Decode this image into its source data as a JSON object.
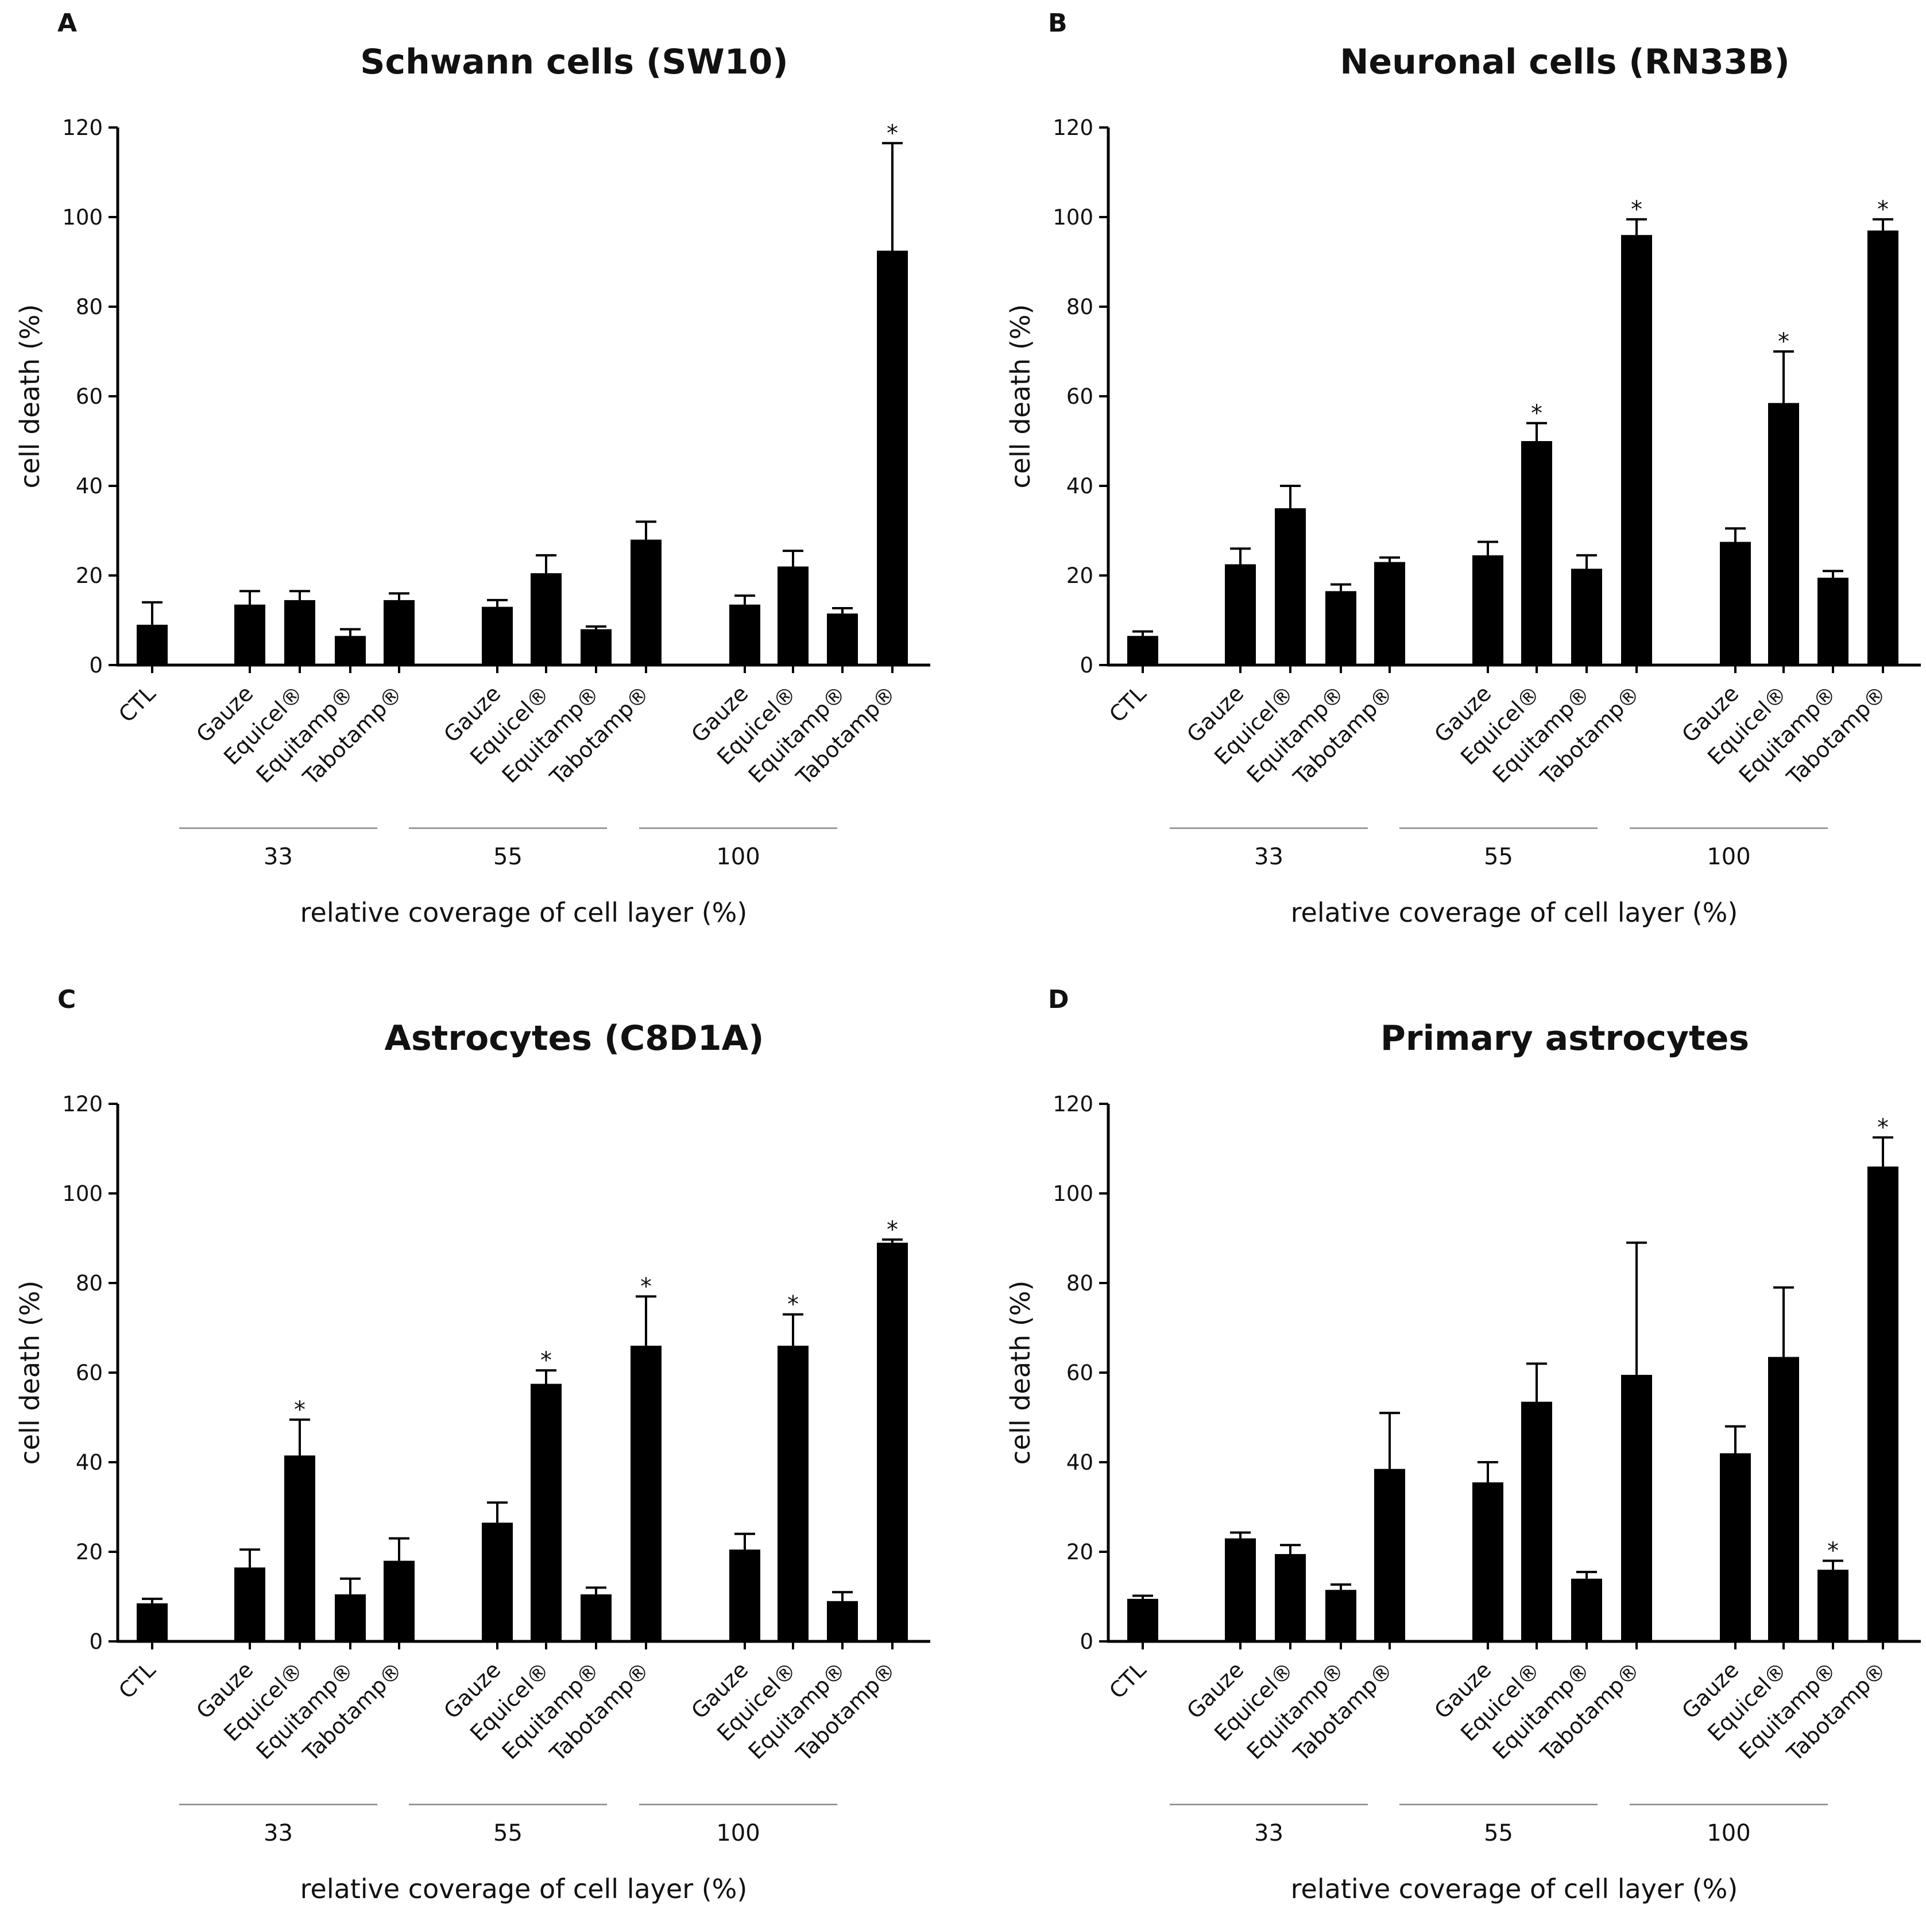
{
  "chart_data": [
    {
      "type": "bar",
      "letter": "A",
      "title": "Schwann cells (SW10)",
      "ylabel": "cell death (%)",
      "xlabel": "relative coverage of cell layer (%)",
      "ylim": [
        0,
        120
      ],
      "yticks": [
        0,
        20,
        40,
        60,
        80,
        100,
        120
      ],
      "groups": [
        "33",
        "55",
        "100"
      ],
      "categories": [
        "CTL",
        "Gauze",
        "Equicel®",
        "Equitamp®",
        "Tabotamp®",
        "Gauze",
        "Equicel®",
        "Equitamp®",
        "Tabotamp®",
        "Gauze",
        "Equicel®",
        "Equitamp®",
        "Tabotamp®"
      ],
      "values": [
        9,
        13.5,
        14.5,
        6.5,
        14.5,
        13,
        20.5,
        8,
        28,
        13.5,
        22,
        11.5,
        92.5
      ],
      "errors": [
        5,
        3,
        2,
        1.5,
        1.5,
        1.5,
        4,
        0.6,
        4,
        2,
        3.5,
        1.2,
        24
      ],
      "significant": [
        false,
        false,
        false,
        false,
        false,
        false,
        false,
        false,
        false,
        false,
        false,
        false,
        true
      ],
      "star": "*"
    },
    {
      "type": "bar",
      "letter": "B",
      "title": "Neuronal cells (RN33B)",
      "ylabel": "cell death (%)",
      "xlabel": "relative coverage of cell layer (%)",
      "ylim": [
        0,
        120
      ],
      "yticks": [
        0,
        20,
        40,
        60,
        80,
        100,
        120
      ],
      "groups": [
        "33",
        "55",
        "100"
      ],
      "categories": [
        "CTL",
        "Gauze",
        "Equicel®",
        "Equitamp®",
        "Tabotamp®",
        "Gauze",
        "Equicel®",
        "Equitamp®",
        "Tabotamp®",
        "Gauze",
        "Equicel®",
        "Equitamp®",
        "Tabotamp®"
      ],
      "values": [
        6.5,
        22.5,
        35,
        16.5,
        23,
        24.5,
        50,
        21.5,
        96,
        27.5,
        58.5,
        19.5,
        97
      ],
      "errors": [
        1,
        3.5,
        5,
        1.5,
        1,
        3,
        4,
        3,
        3.5,
        3,
        11.5,
        1.5,
        2.5
      ],
      "significant": [
        false,
        false,
        false,
        false,
        false,
        false,
        true,
        false,
        true,
        false,
        true,
        false,
        true
      ],
      "star": "*"
    },
    {
      "type": "bar",
      "letter": "C",
      "title": "Astrocytes (C8D1A)",
      "ylabel": "cell death (%)",
      "xlabel": "relative coverage of cell layer (%)",
      "ylim": [
        0,
        120
      ],
      "yticks": [
        0,
        20,
        40,
        60,
        80,
        100,
        120
      ],
      "groups": [
        "33",
        "55",
        "100"
      ],
      "categories": [
        "CTL",
        "Gauze",
        "Equicel®",
        "Equitamp®",
        "Tabotamp®",
        "Gauze",
        "Equicel®",
        "Equitamp®",
        "Tabotamp®",
        "Gauze",
        "Equicel®",
        "Equitamp®",
        "Tabotamp®"
      ],
      "values": [
        8.5,
        16.5,
        41.5,
        10.5,
        18,
        26.5,
        57.5,
        10.5,
        66,
        20.5,
        66,
        9,
        89
      ],
      "errors": [
        1,
        4,
        8,
        3.5,
        5,
        4.5,
        3,
        1.5,
        11,
        3.5,
        7,
        2,
        0.7
      ],
      "significant": [
        false,
        false,
        true,
        false,
        false,
        false,
        true,
        false,
        true,
        false,
        true,
        false,
        true
      ],
      "star": "*"
    },
    {
      "type": "bar",
      "letter": "D",
      "title": "Primary astrocytes",
      "ylabel": "cell death (%)",
      "xlabel": "relative coverage of cell layer (%)",
      "ylim": [
        0,
        120
      ],
      "yticks": [
        0,
        20,
        40,
        60,
        80,
        100,
        120
      ],
      "groups": [
        "33",
        "55",
        "100"
      ],
      "categories": [
        "CTL",
        "Gauze",
        "Equicel®",
        "Equitamp®",
        "Tabotamp®",
        "Gauze",
        "Equicel®",
        "Equitamp®",
        "Tabotamp®",
        "Gauze",
        "Equicel®",
        "Equitamp®",
        "Tabotamp®"
      ],
      "values": [
        9.5,
        23,
        19.5,
        11.5,
        38.5,
        35.5,
        53.5,
        14,
        59.5,
        42,
        63.5,
        16,
        106
      ],
      "errors": [
        0.7,
        1.3,
        2,
        1.2,
        12.5,
        4.5,
        8.5,
        1.5,
        29.5,
        6,
        15.5,
        2,
        6.5
      ],
      "significant": [
        false,
        false,
        false,
        false,
        false,
        false,
        false,
        false,
        false,
        false,
        false,
        true,
        true
      ],
      "star": "*"
    }
  ]
}
